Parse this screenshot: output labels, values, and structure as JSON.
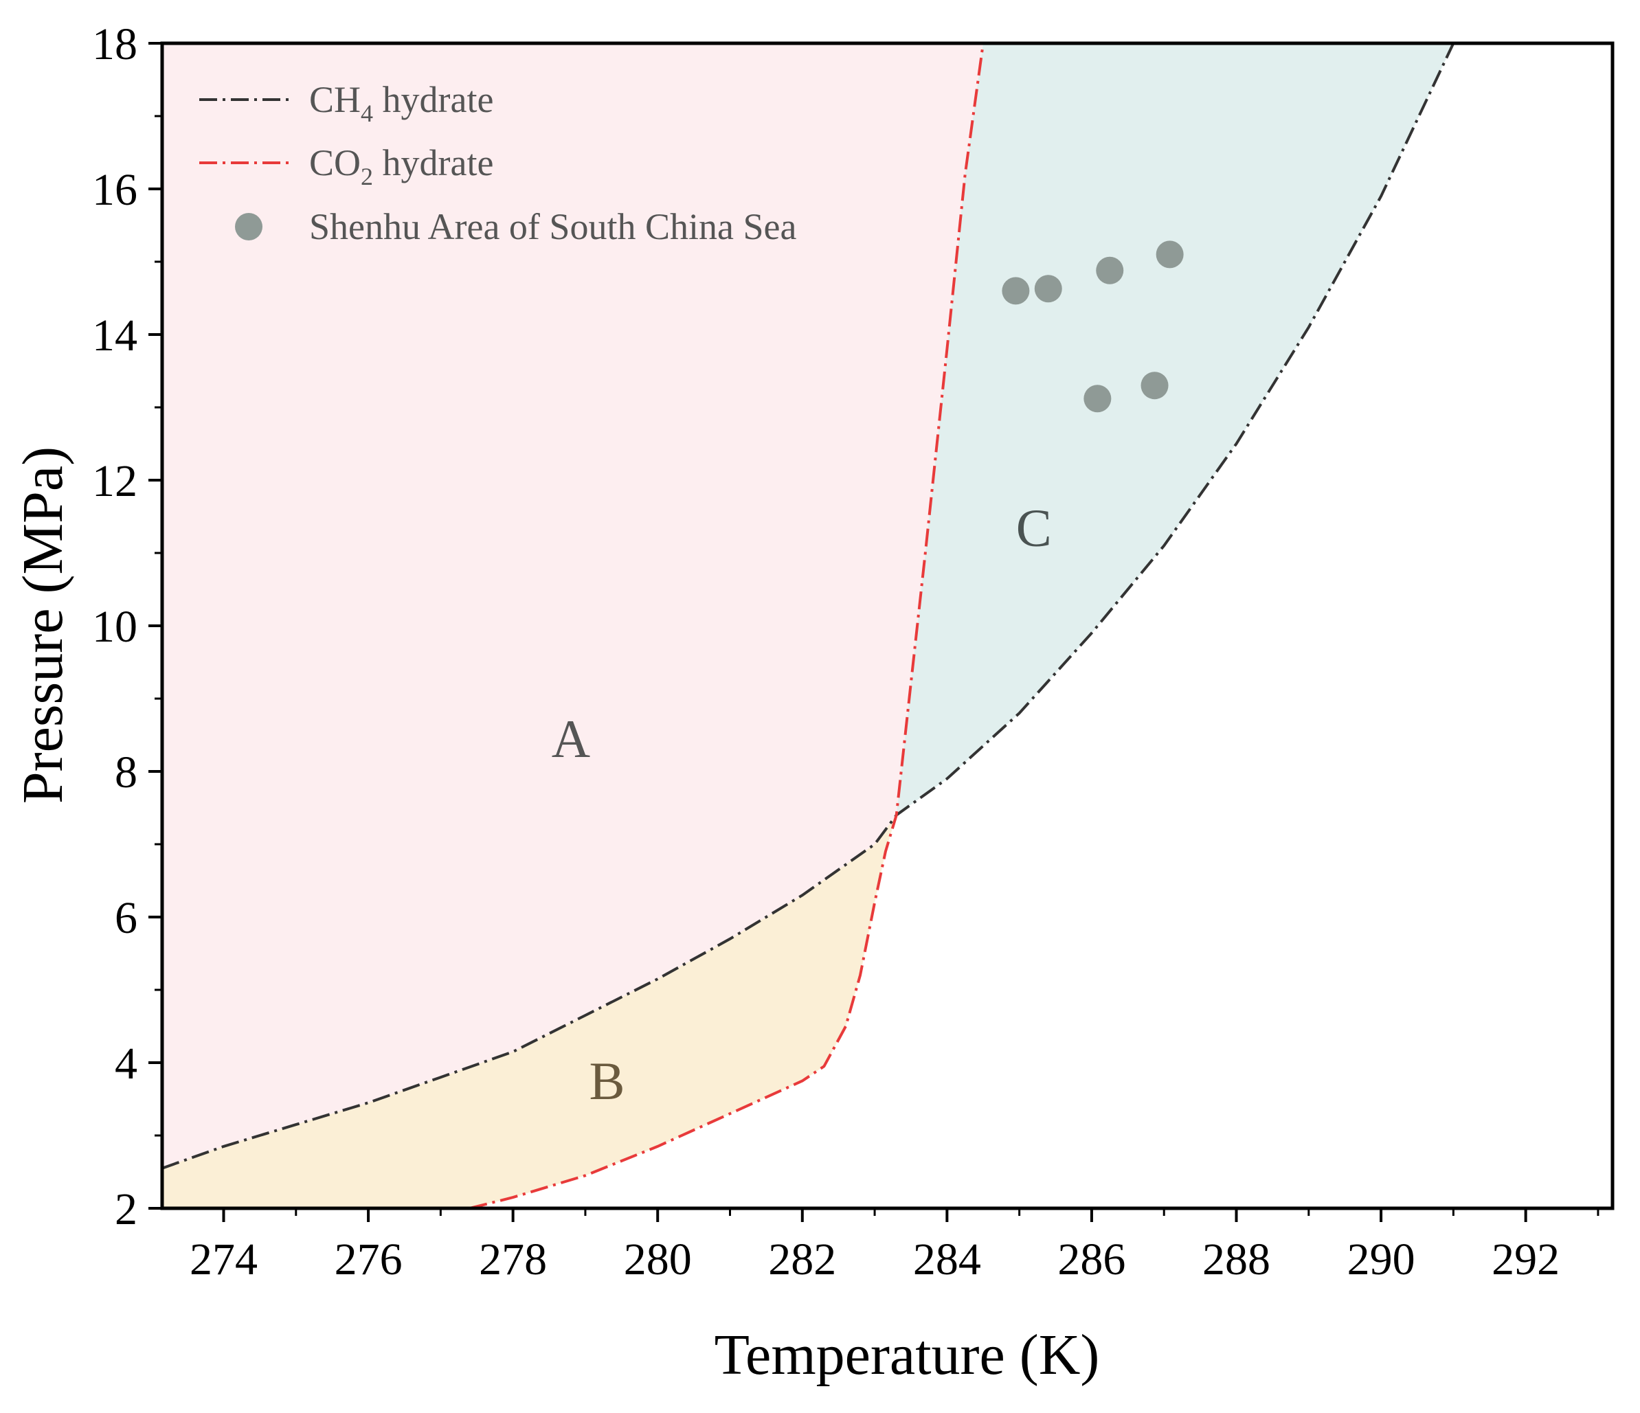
{
  "chart_data": {
    "type": "line",
    "xlabel": "Temperature (K)",
    "ylabel": "Pressure (MPa)",
    "xlim": [
      273.15,
      293.2
    ],
    "ylim": [
      2,
      18
    ],
    "x_ticks": [
      274,
      276,
      278,
      280,
      282,
      284,
      286,
      288,
      290,
      292
    ],
    "y_ticks": [
      2,
      4,
      6,
      8,
      10,
      12,
      14,
      16,
      18
    ],
    "grid": false,
    "legend_position": "top-left",
    "series": [
      {
        "name": "CH4 hydrate",
        "legend_main": "CH",
        "legend_sub": "4",
        "legend_rest": " hydrate",
        "style": "dash-dot",
        "color": "#333333",
        "x": [
          273.15,
          274,
          275,
          276,
          277,
          278,
          279,
          280,
          281,
          282,
          283,
          283.3,
          284,
          285,
          286,
          287,
          288,
          289,
          290,
          291
        ],
        "y": [
          2.55,
          2.85,
          3.15,
          3.45,
          3.8,
          4.15,
          4.65,
          5.15,
          5.7,
          6.3,
          7.0,
          7.4,
          7.9,
          8.8,
          9.9,
          11.1,
          12.5,
          14.1,
          15.9,
          18.0
        ]
      },
      {
        "name": "CO2 hydrate",
        "legend_main": "CO",
        "legend_sub": "2",
        "legend_rest": " hydrate",
        "style": "dash-dot",
        "color": "#e83a3a",
        "x": [
          277.4,
          278,
          279,
          280,
          281,
          282,
          282.3,
          282.6,
          282.8,
          283.0,
          283.15,
          283.3,
          283.5,
          283.7,
          284.0,
          284.25,
          284.5
        ],
        "y": [
          2.0,
          2.15,
          2.45,
          2.85,
          3.3,
          3.75,
          3.95,
          4.5,
          5.2,
          6.2,
          6.9,
          7.4,
          9.2,
          11.0,
          13.8,
          16.2,
          18.0
        ]
      }
    ],
    "scatter": {
      "name": "Shenhu Area of South China Sea",
      "color": "#8f9a96",
      "points": [
        {
          "x": 284.95,
          "y": 14.6
        },
        {
          "x": 285.4,
          "y": 14.63
        },
        {
          "x": 286.25,
          "y": 14.88
        },
        {
          "x": 287.08,
          "y": 15.1
        },
        {
          "x": 286.08,
          "y": 13.12
        },
        {
          "x": 286.87,
          "y": 13.3
        }
      ]
    },
    "regions": [
      {
        "label": "A",
        "x": 278.8,
        "y": 8.2,
        "fill": "#fdeef0",
        "text_color": "#555555"
      },
      {
        "label": "B",
        "x": 279.3,
        "y": 3.5,
        "fill": "#fbefd6",
        "text_color": "#6a5a3e"
      },
      {
        "label": "C",
        "x": 285.2,
        "y": 11.1,
        "fill": "#e1efee",
        "text_color": "#4a5352"
      }
    ]
  }
}
